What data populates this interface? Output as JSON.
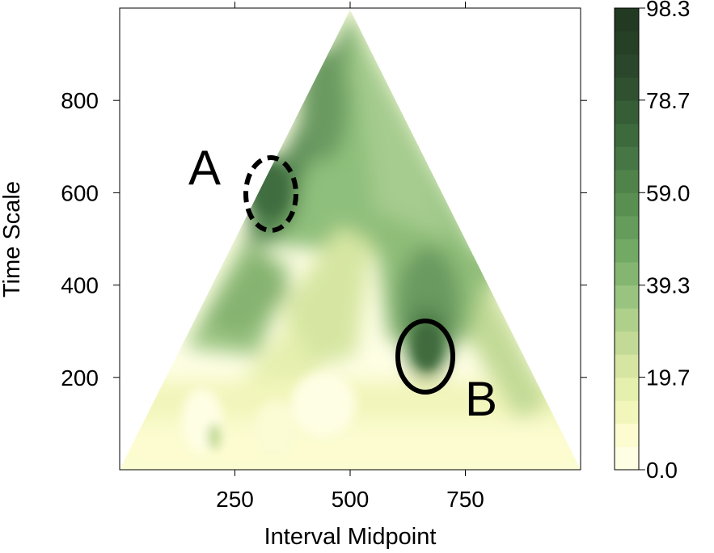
{
  "chart_data": {
    "type": "heatmap",
    "title": "",
    "xlabel": "Interval Midpoint",
    "ylabel": "Time Scale",
    "xlim": [
      0,
      1000
    ],
    "ylim": [
      0,
      1000
    ],
    "x_ticks": [
      250,
      500,
      750
    ],
    "y_ticks": [
      200,
      400,
      600,
      800
    ],
    "shape": "triangle",
    "colorbar": {
      "range": [
        0.0,
        98.3
      ],
      "tick_labels": [
        "98.3",
        "78.7",
        "59.0",
        "39.3",
        "19.7",
        "0.0"
      ],
      "tick_values": [
        98.3,
        78.7,
        59.0,
        39.3,
        19.7,
        0.0
      ],
      "levels": 20,
      "colors": [
        "#fefee4",
        "#fcfcd0",
        "#f2f6bb",
        "#e5efae",
        "#d6e6a2",
        "#c2da96",
        "#aed08b",
        "#98c47f",
        "#84b672",
        "#72a965",
        "#659c5b",
        "#5a8f52",
        "#50834a",
        "#457644",
        "#3d6a3d",
        "#355d36",
        "#2f5130",
        "#2a462b",
        "#264026",
        "#223a22"
      ]
    },
    "annotations": [
      {
        "label": "A",
        "x": 330,
        "y": 590,
        "style": "dashed ellipse"
      },
      {
        "label": "B",
        "x": 660,
        "y": 255,
        "style": "solid ellipse"
      }
    ]
  }
}
